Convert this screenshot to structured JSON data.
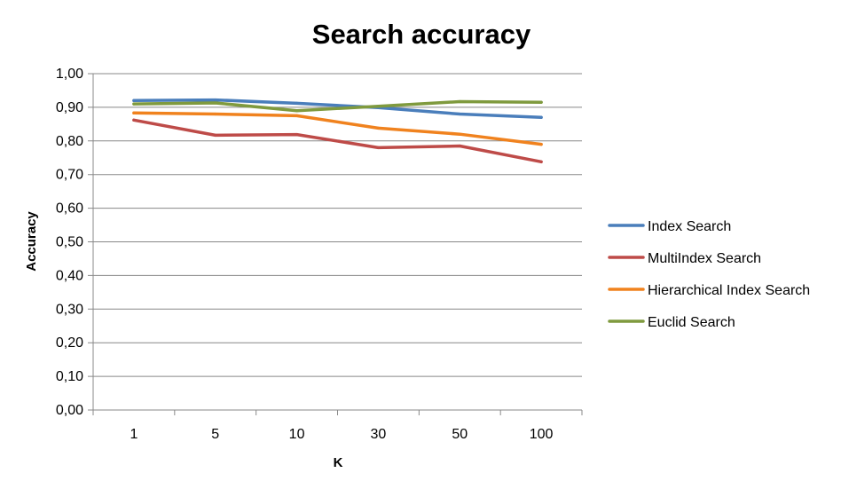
{
  "chart_data": {
    "type": "line",
    "title": "Search accuracy",
    "xlabel": "K",
    "ylabel": "Accuracy",
    "categories": [
      "1",
      "5",
      "10",
      "30",
      "50",
      "100"
    ],
    "ylim": [
      0,
      1
    ],
    "yticks": [
      "0,00",
      "0,10",
      "0,20",
      "0,30",
      "0,40",
      "0,50",
      "0,60",
      "0,70",
      "0,80",
      "0,90",
      "1,00"
    ],
    "grid": true,
    "legend_position": "right",
    "series": [
      {
        "name": "Index Search",
        "color": "#4a7ebb",
        "values": [
          0.92,
          0.922,
          0.912,
          0.899,
          0.88,
          0.87
        ]
      },
      {
        "name": "MultiIndex Search",
        "color": "#be4b48",
        "values": [
          0.862,
          0.817,
          0.819,
          0.78,
          0.785,
          0.738
        ]
      },
      {
        "name": "Hierarchical Index Search",
        "color": "#f0821e",
        "values": [
          0.883,
          0.88,
          0.875,
          0.838,
          0.82,
          0.79
        ]
      },
      {
        "name": "Euclid Search",
        "color": "#7f9a3e",
        "values": [
          0.91,
          0.913,
          0.89,
          0.903,
          0.917,
          0.915
        ]
      }
    ]
  }
}
